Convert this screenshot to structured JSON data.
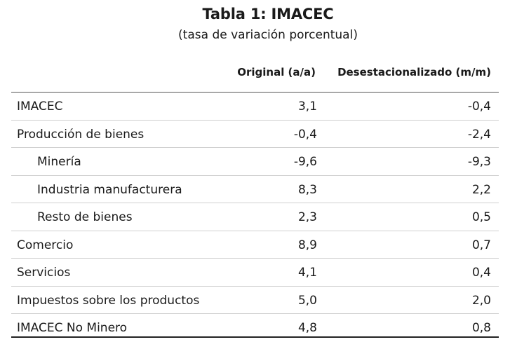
{
  "table": {
    "title": "Tabla 1:  IMACEC",
    "subtitle": "(tasa de variación porcentual)",
    "headers": {
      "original": "Original (a/a)",
      "desestacionalizado": "Desestacionalizado (m/m)"
    },
    "rows": [
      {
        "label": "IMACEC",
        "original": "3,1",
        "desestacionalizado": "-0,4",
        "indent": false
      },
      {
        "label": "Producción de bienes",
        "original": "-0,4",
        "desestacionalizado": "-2,4",
        "indent": false
      },
      {
        "label": "Minería",
        "original": "-9,6",
        "desestacionalizado": "-9,3",
        "indent": true
      },
      {
        "label": "Industria manufacturera",
        "original": "8,3",
        "desestacionalizado": "2,2",
        "indent": true
      },
      {
        "label": "Resto de bienes",
        "original": "2,3",
        "desestacionalizado": "0,5",
        "indent": true
      },
      {
        "label": "Comercio",
        "original": "8,9",
        "desestacionalizado": "0,7",
        "indent": false
      },
      {
        "label": "Servicios",
        "original": "4,1",
        "desestacionalizado": "0,4",
        "indent": false
      },
      {
        "label": "Impuestos sobre los productos",
        "original": "5,0",
        "desestacionalizado": "2,0",
        "indent": false
      },
      {
        "label": "IMACEC No Minero",
        "original": "4,8",
        "desestacionalizado": "0,8",
        "indent": false
      }
    ]
  }
}
